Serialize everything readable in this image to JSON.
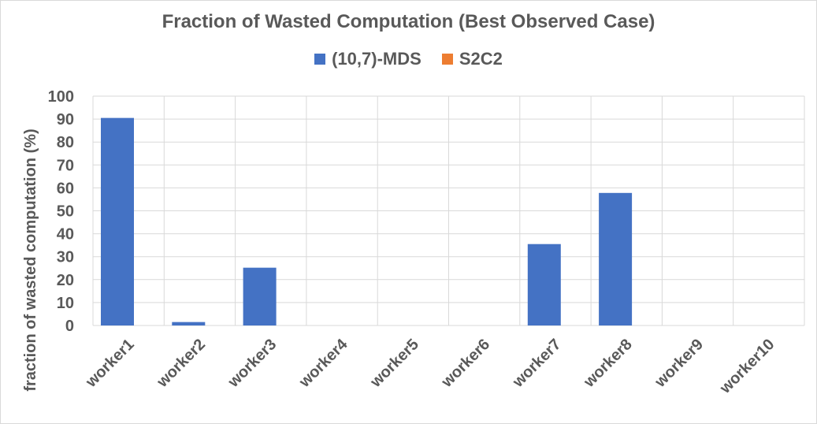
{
  "chart_data": {
    "type": "bar",
    "title": "Fraction of Wasted Computation (Best Observed Case)",
    "xlabel": "",
    "ylabel": "fraction of wasted computation (%)",
    "ylim": [
      0,
      100
    ],
    "yticks": [
      0,
      10,
      20,
      30,
      40,
      50,
      60,
      70,
      80,
      90,
      100
    ],
    "grid": true,
    "legend_position": "top",
    "categories": [
      "worker1",
      "worker2",
      "worker3",
      "worker4",
      "worker5",
      "worker6",
      "worker7",
      "worker8",
      "worker9",
      "worker10"
    ],
    "series": [
      {
        "name": "(10,7)-MDS",
        "color": "#4472c4",
        "values": [
          90.5,
          1.5,
          25.2,
          0,
          0,
          0,
          35.5,
          57.8,
          0,
          0
        ]
      },
      {
        "name": "S2C2",
        "color": "#ed7d31",
        "values": [
          0,
          0,
          0,
          0,
          0,
          0,
          0,
          0,
          0,
          0
        ]
      }
    ]
  }
}
